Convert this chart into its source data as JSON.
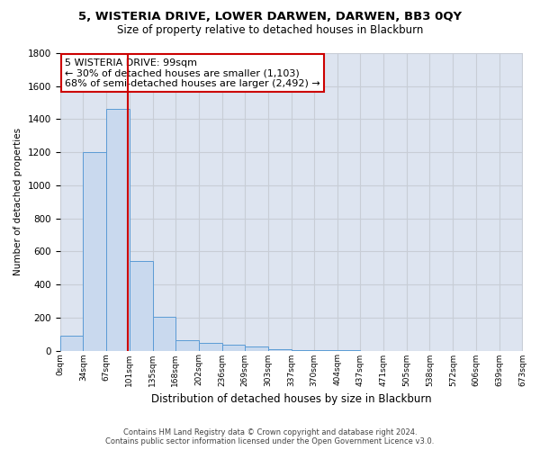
{
  "title": "5, WISTERIA DRIVE, LOWER DARWEN, DARWEN, BB3 0QY",
  "subtitle": "Size of property relative to detached houses in Blackburn",
  "xlabel": "Distribution of detached houses by size in Blackburn",
  "ylabel": "Number of detached properties",
  "bar_edges": [
    0,
    34,
    67,
    101,
    135,
    168,
    202,
    236,
    269,
    303,
    337,
    370,
    404,
    437,
    471,
    505,
    538,
    572,
    606,
    639,
    673
  ],
  "bar_values": [
    90,
    1200,
    1460,
    540,
    205,
    65,
    45,
    35,
    27,
    10,
    5,
    5,
    5,
    0,
    0,
    0,
    0,
    0,
    0,
    0
  ],
  "bar_color": "#c9d9ee",
  "bar_edge_color": "#5b9bd5",
  "grid_color": "#c8cdd6",
  "background_color": "#dde4f0",
  "vline_x": 99,
  "vline_color": "#cc0000",
  "annotation_text": "5 WISTERIA DRIVE: 99sqm\n← 30% of detached houses are smaller (1,103)\n68% of semi-detached houses are larger (2,492) →",
  "annotation_box_color": "#cc0000",
  "ylim": [
    0,
    1800
  ],
  "yticks": [
    0,
    200,
    400,
    600,
    800,
    1000,
    1200,
    1400,
    1600,
    1800
  ],
  "footer_line1": "Contains HM Land Registry data © Crown copyright and database right 2024.",
  "footer_line2": "Contains public sector information licensed under the Open Government Licence v3.0."
}
